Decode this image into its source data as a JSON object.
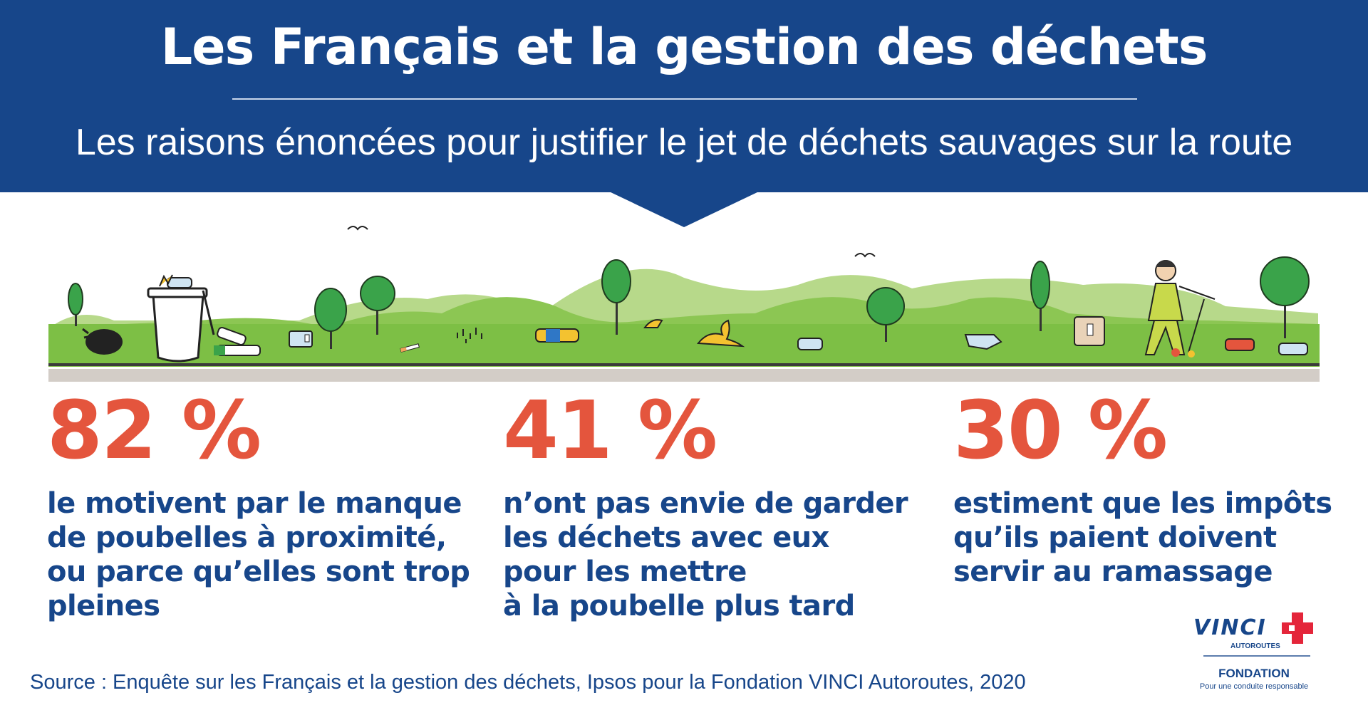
{
  "header": {
    "title": "Les Français et la gestion des déchets",
    "subtitle": "Les raisons énoncées pour justifier le jet de déchets sauvages sur la route"
  },
  "stats": [
    {
      "value": "82 %",
      "text": "le motivent par le manque\nde poubelles à proximité,\nou parce qu’elles sont trop\npleines"
    },
    {
      "value": "41 %",
      "text": "n’ont pas envie de garder\nles déchets avec eux\npour les mettre\nà la poubelle plus tard"
    },
    {
      "value": "30 %",
      "text": "estiment que les impôts\nqu’ils paient doivent\nservir au ramassage"
    }
  ],
  "source": "Source : Enquête sur les Français et la gestion des déchets, Ipsos pour la Fondation VINCI Autoroutes, 2020",
  "logo": {
    "brand": "VINCI",
    "sub": "AUTOROUTES",
    "foundation": "FONDATION",
    "tagline": "Pour une conduite responsable"
  },
  "colors": {
    "header_blue": "#17468a",
    "accent_red": "#e4553d",
    "grass_green": "#7dbf45",
    "hill_light_green": "#b7d98a"
  },
  "icons": [
    "bird-icon",
    "tree-icon",
    "trash-bag-icon",
    "overflowing-bin-icon",
    "bottle-icon",
    "can-icon",
    "banana-peel-icon",
    "cigarette-butt-icon",
    "plastic-bag-icon",
    "carton-icon",
    "road-worker-icon"
  ]
}
